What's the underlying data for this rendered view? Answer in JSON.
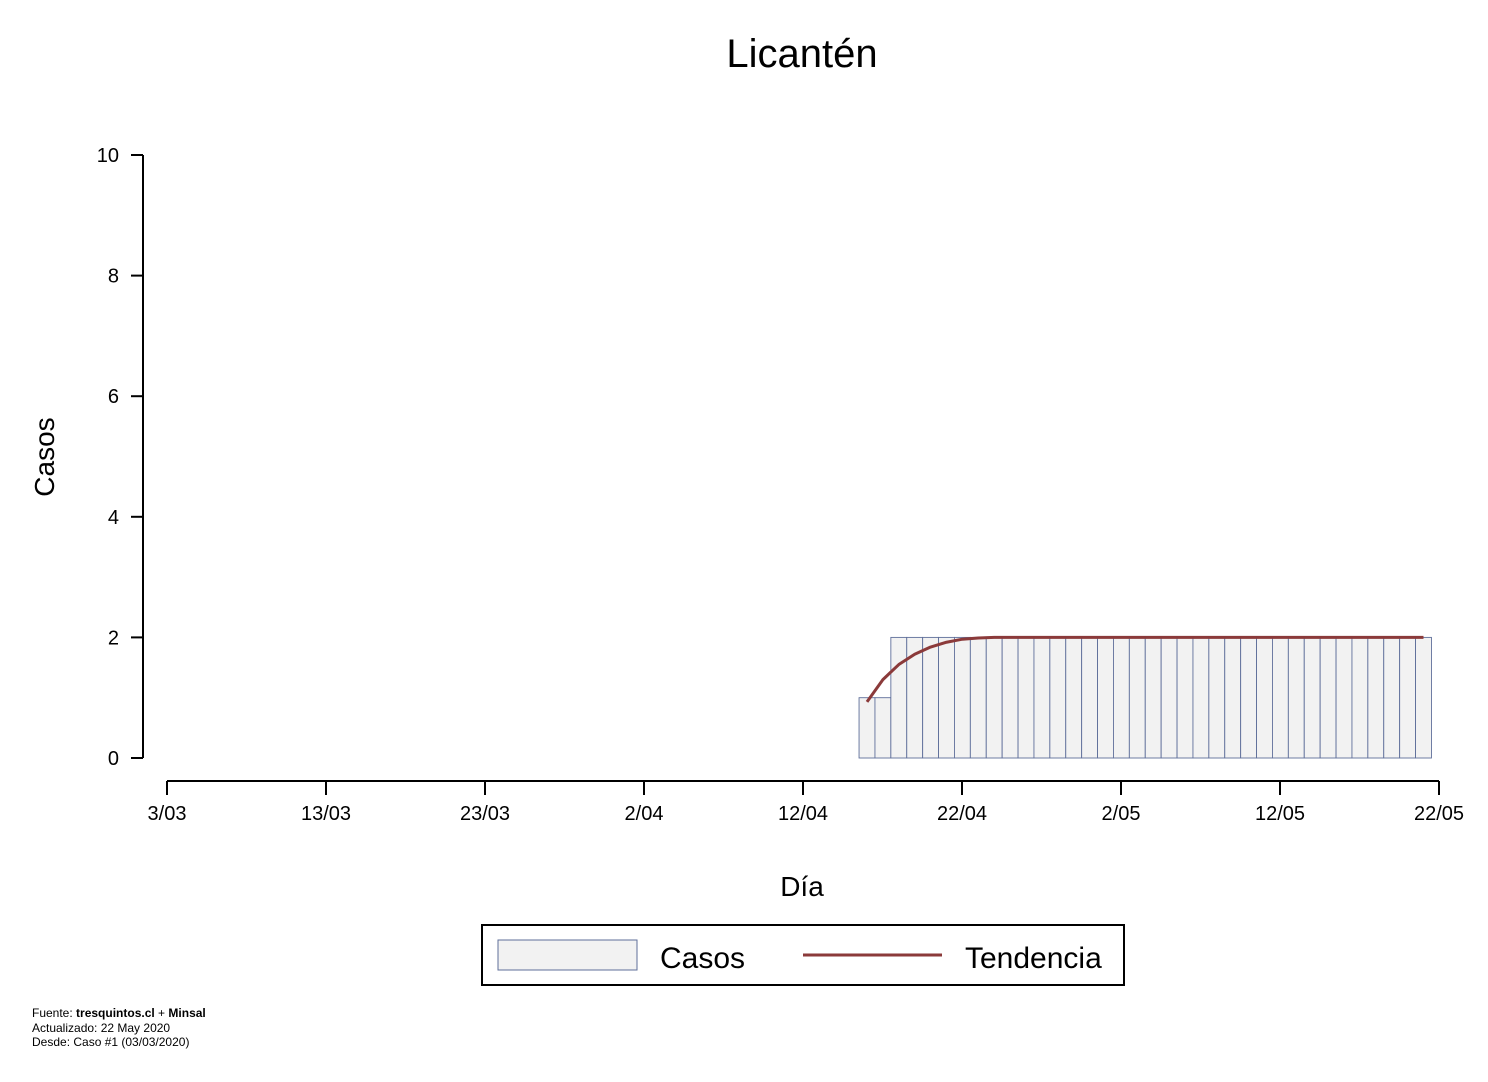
{
  "chart_data": {
    "type": "bar",
    "title": "Licantén",
    "xlabel": "Día",
    "ylabel": "Casos",
    "ylim": [
      0,
      10
    ],
    "yticks": [
      0,
      2,
      4,
      6,
      8,
      10
    ],
    "xticks": [
      "3/03",
      "13/03",
      "23/03",
      "2/04",
      "12/04",
      "22/04",
      "2/05",
      "12/05",
      "22/05"
    ],
    "start_date": "3/03",
    "first_bar_day_index": 44,
    "series": [
      {
        "name": "Casos",
        "kind": "bar",
        "values": [
          1,
          1,
          2,
          2,
          2,
          2,
          2,
          2,
          2,
          2,
          2,
          2,
          2,
          2,
          2,
          2,
          2,
          2,
          2,
          2,
          2,
          2,
          2,
          2,
          2,
          2,
          2,
          2,
          2,
          2,
          2,
          2,
          2,
          2,
          2,
          2
        ]
      },
      {
        "name": "Tendencia",
        "kind": "line",
        "values": [
          0.93,
          1.3,
          1.55,
          1.72,
          1.84,
          1.92,
          1.97,
          1.99,
          2,
          2,
          2,
          2,
          2,
          2,
          2,
          2,
          2,
          2,
          2,
          2,
          2,
          2,
          2,
          2,
          2,
          2,
          2,
          2,
          2,
          2,
          2,
          2,
          2,
          2,
          2,
          2
        ]
      }
    ],
    "legend": [
      "Casos",
      "Tendencia"
    ],
    "legend_position": "bottom-center",
    "colors": {
      "bar_fill": "#f2f2f2",
      "bar_stroke": "#5f6f9a",
      "line": "#8b3a3a"
    }
  },
  "footer": {
    "source_prefix": "Fuente: ",
    "source_site": "tresquintos.cl",
    "source_join": " + ",
    "source_org": "Minsal",
    "updated": "Actualizado: 22 May 2020",
    "since": "Desde: Caso #1  (03/03/2020)"
  }
}
